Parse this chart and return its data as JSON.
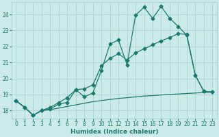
{
  "xlabel": "Humidex (Indice chaleur)",
  "ylabel": "",
  "bg_color": "#cceae8",
  "grid_color": "#aad4d0",
  "line_color": "#1a7a6e",
  "xlim": [
    -0.5,
    23.5
  ],
  "ylim": [
    17.5,
    24.75
  ],
  "xticks": [
    0,
    1,
    2,
    3,
    4,
    5,
    6,
    7,
    8,
    9,
    10,
    11,
    12,
    13,
    14,
    15,
    16,
    17,
    18,
    19,
    20,
    21,
    22,
    23
  ],
  "yticks": [
    18,
    19,
    20,
    21,
    22,
    23,
    24
  ],
  "line1_x": [
    0,
    1,
    2,
    3,
    4,
    5,
    6,
    7,
    8,
    9,
    10,
    11,
    12,
    13,
    14,
    15,
    16,
    17,
    18,
    19,
    20,
    21,
    22,
    23
  ],
  "line1_y": [
    18.6,
    18.2,
    17.7,
    18.0,
    18.1,
    18.4,
    18.5,
    19.3,
    18.85,
    19.1,
    20.5,
    22.15,
    22.4,
    20.85,
    23.95,
    24.45,
    23.75,
    24.5,
    23.75,
    23.25,
    22.7,
    20.2,
    19.2,
    19.15
  ],
  "line2_x": [
    0,
    1,
    2,
    3,
    4,
    5,
    6,
    7,
    8,
    9,
    10,
    11,
    12,
    13,
    14,
    15,
    16,
    17,
    18,
    19,
    20,
    21,
    22,
    23
  ],
  "line2_y": [
    18.6,
    18.2,
    17.7,
    18.0,
    18.2,
    18.5,
    18.8,
    19.3,
    19.35,
    19.6,
    20.8,
    21.25,
    21.55,
    21.15,
    21.6,
    21.85,
    22.1,
    22.35,
    22.55,
    22.8,
    22.75,
    20.2,
    19.2,
    19.15
  ],
  "line3_x": [
    0,
    1,
    2,
    3,
    4,
    5,
    6,
    7,
    8,
    9,
    10,
    11,
    12,
    13,
    14,
    15,
    16,
    17,
    18,
    19,
    20,
    21,
    22,
    23
  ],
  "line3_y": [
    18.6,
    18.2,
    17.7,
    18.0,
    18.05,
    18.15,
    18.25,
    18.35,
    18.45,
    18.55,
    18.62,
    18.69,
    18.75,
    18.8,
    18.85,
    18.9,
    18.93,
    18.97,
    19.0,
    19.03,
    19.06,
    19.09,
    19.12,
    19.15
  ],
  "marker": "D",
  "markersize": 2.5,
  "linewidth": 0.9,
  "tick_fontsize": 5.5,
  "label_fontsize": 6.5
}
